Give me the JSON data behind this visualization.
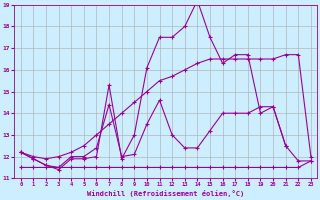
{
  "xlabel": "Windchill (Refroidissement éolien,°C)",
  "bg_color": "#cceeff",
  "line_color": "#990099",
  "grid_color": "#aaaaaa",
  "xlim": [
    -0.5,
    23.5
  ],
  "ylim": [
    11,
    19
  ],
  "xticks": [
    0,
    1,
    2,
    3,
    4,
    5,
    6,
    7,
    8,
    9,
    10,
    11,
    12,
    13,
    14,
    15,
    16,
    17,
    18,
    19,
    20,
    21,
    22,
    23
  ],
  "yticks": [
    11,
    12,
    13,
    14,
    15,
    16,
    17,
    18,
    19
  ],
  "line1_x": [
    0,
    1,
    2,
    3,
    4,
    5,
    6,
    7,
    8,
    9,
    10,
    11,
    12,
    13,
    14,
    15,
    16,
    17,
    18,
    19,
    20,
    21
  ],
  "line1_y": [
    12.2,
    11.9,
    11.6,
    11.4,
    11.9,
    11.9,
    12.0,
    15.3,
    11.9,
    13.0,
    16.1,
    17.5,
    17.5,
    18.0,
    19.2,
    17.5,
    16.3,
    16.7,
    16.7,
    14.0,
    14.3,
    12.5
  ],
  "line2_x": [
    0,
    1,
    2,
    3,
    4,
    5,
    6,
    7,
    8,
    9,
    10,
    11,
    12,
    13,
    14,
    15,
    16,
    17,
    18,
    19,
    20,
    21,
    22,
    23
  ],
  "line2_y": [
    12.2,
    12.0,
    11.9,
    12.0,
    12.2,
    12.5,
    13.0,
    13.5,
    14.0,
    14.5,
    15.0,
    15.5,
    15.7,
    16.0,
    16.3,
    16.5,
    16.5,
    16.5,
    16.5,
    16.5,
    16.5,
    16.7,
    16.7,
    12.0
  ],
  "line3_x": [
    0,
    1,
    2,
    3,
    4,
    5,
    6,
    7,
    8,
    9,
    10,
    11,
    12,
    13,
    14,
    15,
    16,
    17,
    18,
    19,
    20,
    21,
    22,
    23
  ],
  "line3_y": [
    12.2,
    11.9,
    11.6,
    11.5,
    12.0,
    12.0,
    12.4,
    14.4,
    12.0,
    12.1,
    13.5,
    14.6,
    13.0,
    12.4,
    12.4,
    13.2,
    14.0,
    14.0,
    14.0,
    14.3,
    14.3,
    12.5,
    11.8,
    11.8
  ],
  "line4_x": [
    0,
    1,
    2,
    3,
    4,
    5,
    6,
    7,
    8,
    9,
    10,
    11,
    12,
    13,
    14,
    15,
    16,
    17,
    18,
    19,
    20,
    21,
    22,
    23
  ],
  "line4_y": [
    11.5,
    11.5,
    11.5,
    11.5,
    11.5,
    11.5,
    11.5,
    11.5,
    11.5,
    11.5,
    11.5,
    11.5,
    11.5,
    11.5,
    11.5,
    11.5,
    11.5,
    11.5,
    11.5,
    11.5,
    11.5,
    11.5,
    11.5,
    11.8
  ]
}
